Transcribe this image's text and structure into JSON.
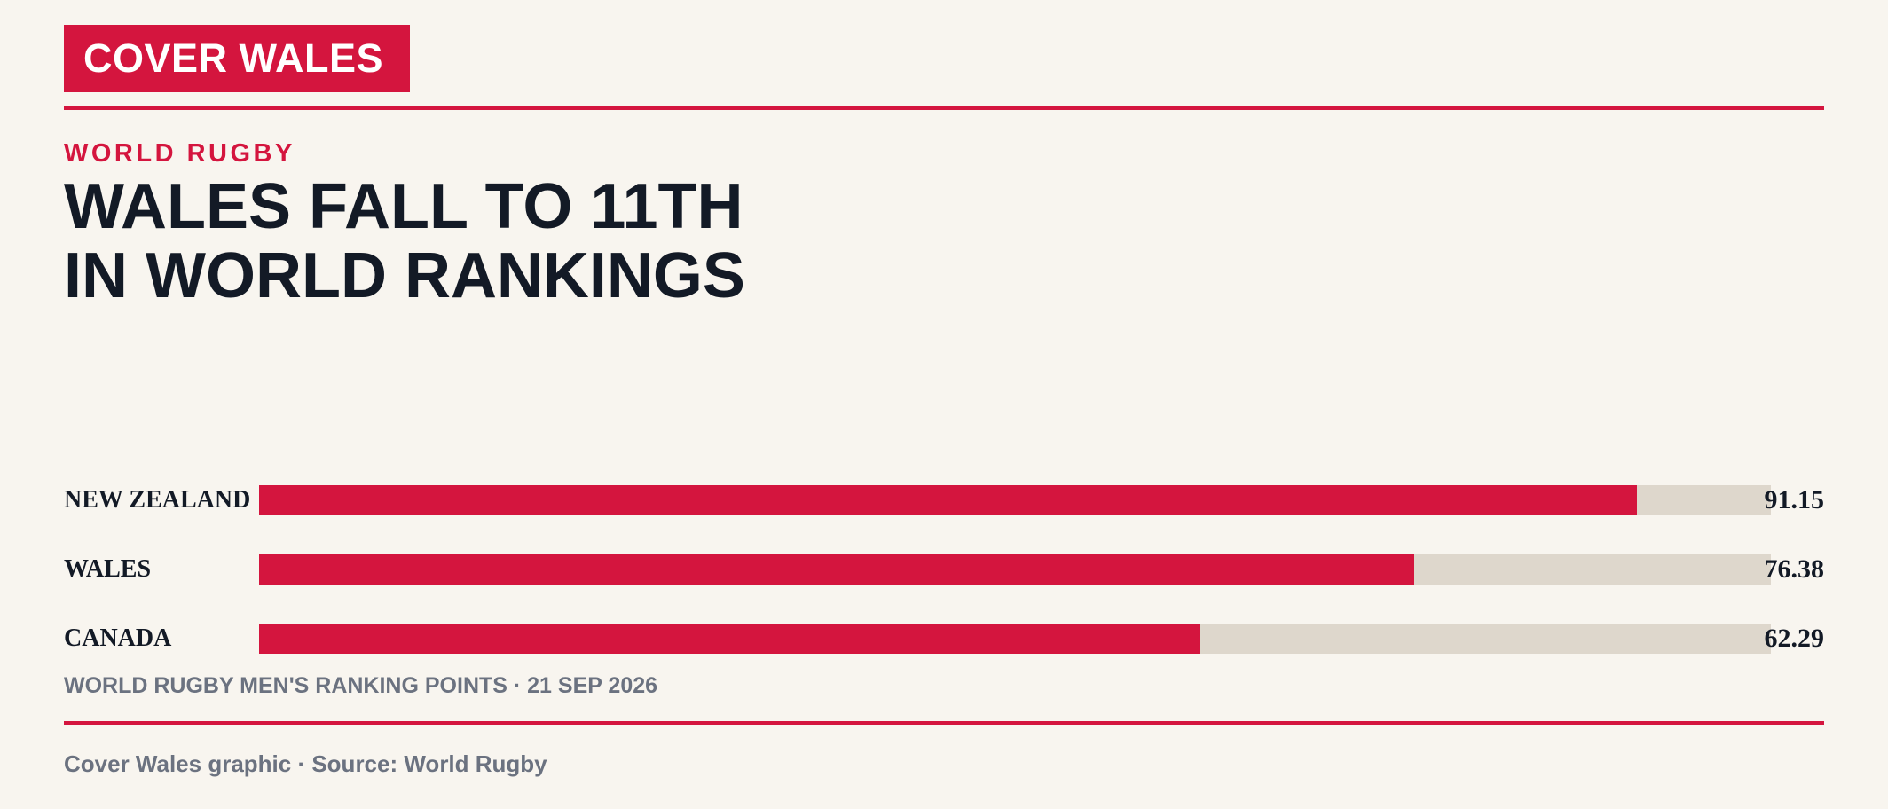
{
  "brand": {
    "name": "COVER WALES"
  },
  "kicker": "WORLD RUGBY",
  "headline": {
    "line1": "WALES FALL TO 11TH",
    "line2": "IN WORLD RANKINGS"
  },
  "chart_data": {
    "type": "bar",
    "orientation": "horizontal",
    "categories": [
      "NEW ZEALAND",
      "WALES",
      "CANADA"
    ],
    "values": [
      91.15,
      76.38,
      62.29
    ],
    "value_labels": [
      "91.15",
      "76.38",
      "62.29"
    ],
    "xlim": [
      0,
      100
    ],
    "caption": "WORLD RUGBY MEN'S RANKING POINTS · 21 SEP 2026",
    "grid": false,
    "legend": "none"
  },
  "footer": "Cover Wales graphic · Source: World Rugby",
  "colors": {
    "accent": "#d4153e",
    "track": "#ded7cc",
    "background": "#f8f5ef",
    "ink": "#131a26",
    "muted": "#6b7280"
  }
}
